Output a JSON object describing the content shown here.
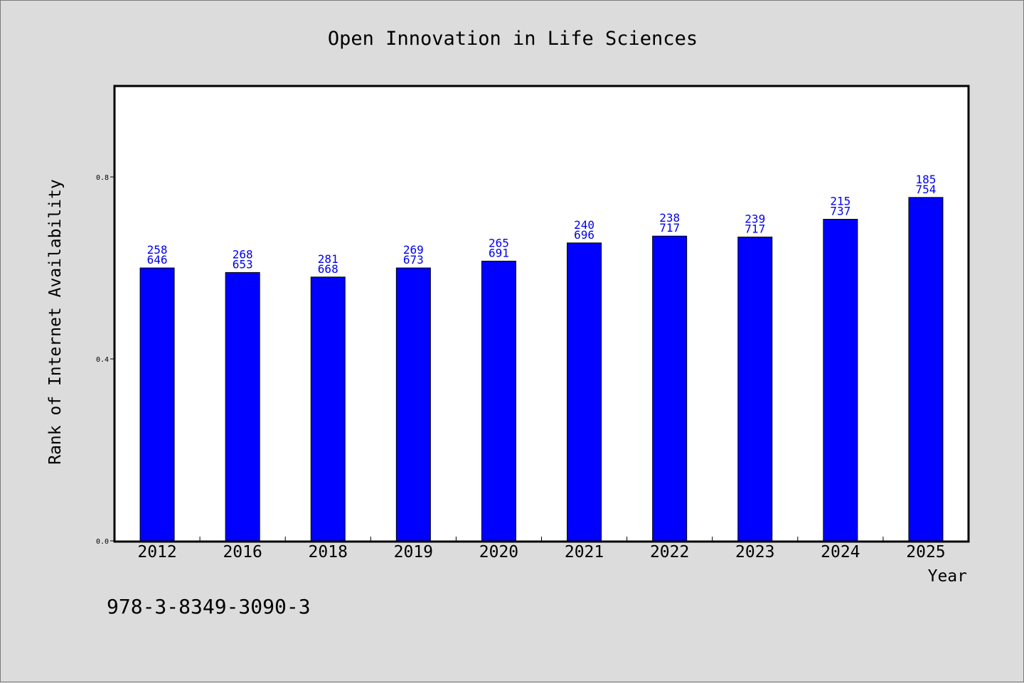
{
  "chart_data": {
    "type": "bar",
    "title": "Open Innovation in Life Sciences",
    "xlabel": "Year",
    "ylabel": "Rank of Internet Availability",
    "categories": [
      "2012",
      "2016",
      "2018",
      "2019",
      "2020",
      "2021",
      "2022",
      "2023",
      "2024",
      "2025"
    ],
    "values": [
      0.6,
      0.59,
      0.58,
      0.6,
      0.615,
      0.655,
      0.67,
      0.668,
      0.707,
      0.755
    ],
    "data_labels_top": [
      "258",
      "268",
      "281",
      "269",
      "265",
      "240",
      "238",
      "239",
      "215",
      "185"
    ],
    "data_labels_bottom": [
      "646",
      "653",
      "668",
      "673",
      "691",
      "696",
      "717",
      "717",
      "737",
      "754"
    ],
    "ylim": [
      0,
      1.0
    ],
    "yticks": [
      "0.0",
      "0.4",
      "0.8"
    ],
    "ytick_values": [
      0,
      0.4,
      0.8
    ],
    "bar_color": "#0000ff",
    "label_color": "#0000ee",
    "grid": false,
    "legend": "none"
  },
  "footer": {
    "isbn": "978-3-8349-3090-3"
  }
}
